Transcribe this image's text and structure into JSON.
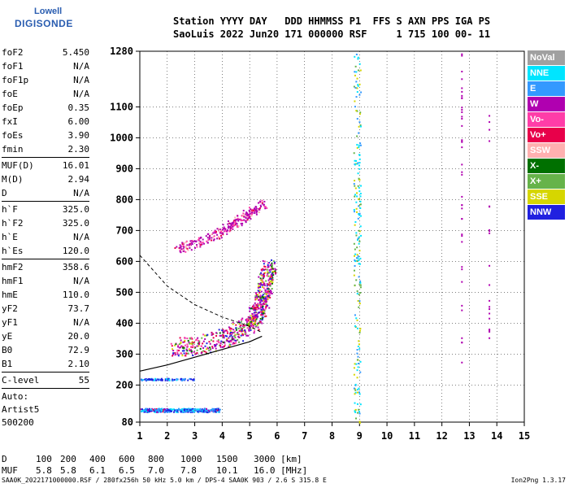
{
  "logo": {
    "line1": "Lowell",
    "line2": "DIGISONDE"
  },
  "header": {
    "line1": "Station YYYY DAY   DDD HHMMSS P1  FFS S AXN PPS IGA PS",
    "line2": "SaoLuis 2022 Jun20 171 000000 RSF     1 715 100 00- 11"
  },
  "params": [
    [
      {
        "k": "foF2",
        "v": "5.450"
      },
      {
        "k": "foF1",
        "v": "N/A"
      },
      {
        "k": "foF1p",
        "v": "N/A"
      },
      {
        "k": "foE",
        "v": "N/A"
      },
      {
        "k": "foEp",
        "v": "0.35"
      },
      {
        "k": "fxI",
        "v": "6.00"
      },
      {
        "k": "foEs",
        "v": "3.90"
      },
      {
        "k": "fmin",
        "v": "2.30"
      }
    ],
    [
      {
        "k": "MUF(D)",
        "v": "16.01"
      },
      {
        "k": "M(D)",
        "v": "2.94"
      },
      {
        "k": "D",
        "v": "N/A"
      }
    ],
    [
      {
        "k": "h`F",
        "v": "325.0"
      },
      {
        "k": "h`F2",
        "v": "325.0"
      },
      {
        "k": "h`E",
        "v": "N/A"
      },
      {
        "k": "h`Es",
        "v": "120.0"
      }
    ],
    [
      {
        "k": "hmF2",
        "v": "358.6"
      },
      {
        "k": "hmF1",
        "v": "N/A"
      },
      {
        "k": "hmE",
        "v": "110.0"
      },
      {
        "k": "yF2",
        "v": "73.7"
      },
      {
        "k": "yF1",
        "v": "N/A"
      },
      {
        "k": "yE",
        "v": "20.0"
      },
      {
        "k": "B0",
        "v": "72.9"
      },
      {
        "k": "B1",
        "v": "2.10"
      }
    ],
    [
      {
        "k": "C-level",
        "v": "55"
      }
    ]
  ],
  "auto": {
    "line1": "Auto:",
    "line2": "Artist5",
    "line3": "500200"
  },
  "legend": [
    {
      "label": "NoVal",
      "color": "#a0a0a0"
    },
    {
      "label": "NNE",
      "color": "#00e5ff"
    },
    {
      "label": "E",
      "color": "#3399ff"
    },
    {
      "label": "W",
      "color": "#b000b0"
    },
    {
      "label": "Vo-",
      "color": "#ff3da8"
    },
    {
      "label": "Vo+",
      "color": "#e8004a"
    },
    {
      "label": "SSW",
      "color": "#ffb0b0"
    },
    {
      "label": "X-",
      "color": "#007000"
    },
    {
      "label": "X+",
      "color": "#66b34a"
    },
    {
      "label": "SSE",
      "color": "#d6d600"
    },
    {
      "label": "NNW",
      "color": "#2020e0"
    }
  ],
  "dmuf": {
    "d_label": "D",
    "d_values": [
      "100",
      "200",
      "400",
      "600",
      "800",
      "1000",
      "1500",
      "3000 [km]"
    ],
    "muf_label": "MUF",
    "muf_values": [
      "5.8",
      "5.8",
      "6.1",
      "6.5",
      "7.0",
      "7.8",
      "10.1",
      "16.0 [MHz]"
    ]
  },
  "footer": {
    "left": "SAA0K_2022171000000.RSF / 280fx256h 50 kHz 5.0 km / DPS-4 SAA0K 903 / 2.6 S 315.8 E",
    "right": "Ion2Png 1.3.17"
  },
  "chart_data": {
    "type": "scatter",
    "title": "",
    "xlabel": "",
    "ylabel": "",
    "xlim": [
      1,
      15
    ],
    "ylim": [
      80,
      1280
    ],
    "x_ticks": [
      1,
      2,
      3,
      4,
      5,
      6,
      7,
      8,
      9,
      10,
      11,
      12,
      13,
      14,
      15
    ],
    "y_ticks": [
      80,
      200,
      300,
      400,
      500,
      600,
      700,
      800,
      900,
      1000,
      1100,
      1280
    ],
    "grid": true,
    "traces": {
      "F2_trace": [
        [
          2.3,
          325
        ],
        [
          3.0,
          330
        ],
        [
          3.8,
          345
        ],
        [
          4.5,
          370
        ],
        [
          5.0,
          400
        ],
        [
          5.3,
          440
        ],
        [
          5.45,
          480
        ],
        [
          5.6,
          550
        ],
        [
          5.7,
          580
        ]
      ],
      "F2_second_hop": [
        [
          2.3,
          640
        ],
        [
          3.0,
          660
        ],
        [
          3.8,
          690
        ],
        [
          4.5,
          730
        ],
        [
          5.0,
          760
        ],
        [
          5.5,
          790
        ]
      ],
      "Es_layer": [
        [
          1.0,
          120
        ],
        [
          2.0,
          120
        ],
        [
          3.0,
          120
        ],
        [
          3.9,
          120
        ]
      ],
      "Es_second": [
        [
          1.0,
          220
        ],
        [
          2.0,
          220
        ],
        [
          3.0,
          220
        ]
      ],
      "MUF_vertical_line": [
        [
          8.9,
          90
        ],
        [
          8.9,
          1270
        ]
      ],
      "profile_curve": [
        [
          1.0,
          245
        ],
        [
          2.0,
          265
        ],
        [
          3.0,
          290
        ],
        [
          4.0,
          315
        ],
        [
          5.0,
          340
        ],
        [
          5.45,
          358
        ]
      ],
      "dashed_curve": [
        [
          1.0,
          620
        ],
        [
          2.0,
          520
        ],
        [
          3.0,
          460
        ],
        [
          4.0,
          420
        ],
        [
          5.0,
          390
        ],
        [
          5.45,
          370
        ]
      ]
    }
  }
}
